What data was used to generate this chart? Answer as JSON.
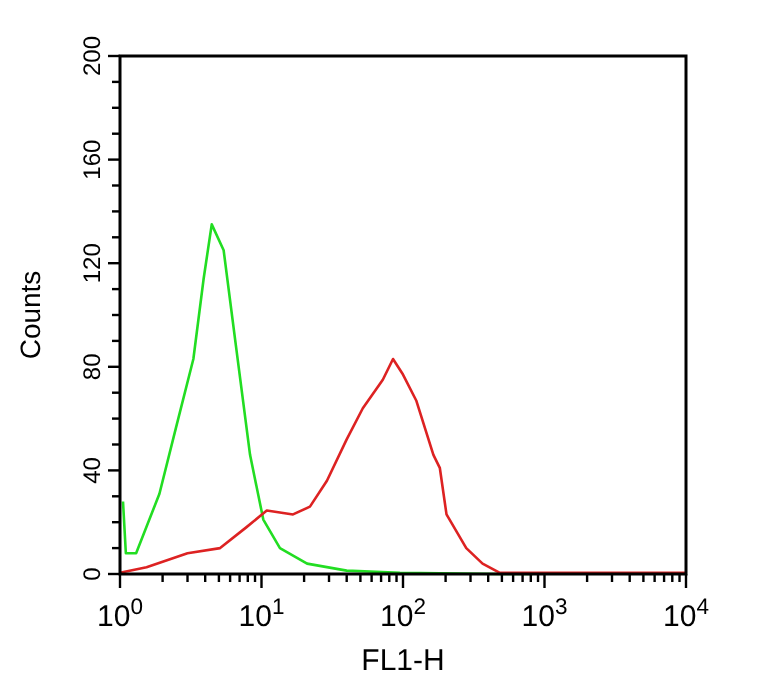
{
  "chart_data": {
    "type": "line",
    "xlabel": "FL1-H",
    "ylabel": "Counts",
    "log": "x",
    "grid": false,
    "marker": "none",
    "line_style": "solid",
    "xlim": [
      1,
      10000
    ],
    "ylim": [
      0,
      200
    ],
    "xticks": [
      {
        "value": 1,
        "label": "10$^{0}$"
      },
      {
        "value": 2,
        "label": null
      },
      {
        "value": 3,
        "label": null
      },
      {
        "value": 4,
        "label": null
      },
      {
        "value": 5,
        "label": null
      },
      {
        "value": 6,
        "label": null
      },
      {
        "value": 7,
        "label": null
      },
      {
        "value": 8,
        "label": null
      },
      {
        "value": 9,
        "label": null
      },
      {
        "value": 10,
        "label": "10$^{1}$"
      },
      {
        "value": 20,
        "label": null
      },
      {
        "value": 30,
        "label": null
      },
      {
        "value": 40,
        "label": null
      },
      {
        "value": 50,
        "label": null
      },
      {
        "value": 60,
        "label": null
      },
      {
        "value": 70,
        "label": null
      },
      {
        "value": 80,
        "label": null
      },
      {
        "value": 90,
        "label": null
      },
      {
        "value": 100,
        "label": "10$^{2}$"
      },
      {
        "value": 200,
        "label": null
      },
      {
        "value": 300,
        "label": null
      },
      {
        "value": 400,
        "label": null
      },
      {
        "value": 500,
        "label": null
      },
      {
        "value": 600,
        "label": null
      },
      {
        "value": 700,
        "label": null
      },
      {
        "value": 800,
        "label": null
      },
      {
        "value": 900,
        "label": null
      },
      {
        "value": 1000,
        "label": "10$^{3}$"
      },
      {
        "value": 2000,
        "label": null
      },
      {
        "value": 3000,
        "label": null
      },
      {
        "value": 4000,
        "label": null
      },
      {
        "value": 5000,
        "label": null
      },
      {
        "value": 6000,
        "label": null
      },
      {
        "value": 7000,
        "label": null
      },
      {
        "value": 8000,
        "label": null
      },
      {
        "value": 9000,
        "label": null
      },
      {
        "value": 10000,
        "label": "10$^{4}$"
      }
    ],
    "yticks": [
      0,
      {
        "value": 10,
        "label": null
      },
      {
        "value": 20,
        "label": null
      },
      {
        "value": 30,
        "label": null
      },
      40,
      {
        "value": 50,
        "label": null
      },
      {
        "value": 60,
        "label": null
      },
      {
        "value": 70,
        "label": null
      },
      80,
      {
        "value": 90,
        "label": null
      },
      {
        "value": 100,
        "label": null
      },
      {
        "value": 110,
        "label": null
      },
      120,
      {
        "value": 130,
        "label": null
      },
      {
        "value": 140,
        "label": null
      },
      {
        "value": 150,
        "label": null
      },
      160,
      {
        "value": 170,
        "label": null
      },
      {
        "value": 180,
        "label": null
      },
      {
        "value": 190,
        "label": null
      },
      200
    ],
    "series": [
      {
        "color": "#22dd22",
        "x": [
          1.05,
          1.1,
          1.3,
          1.9,
          2.5,
          3.3,
          3.9,
          4.45,
          5.4,
          6.6,
          8.3,
          10.3,
          13.5,
          21,
          40,
          95,
          480,
          830
        ],
        "values": [
          28,
          8,
          8,
          31,
          57,
          83,
          114,
          135,
          125,
          88,
          46,
          21,
          10,
          4,
          1.3,
          0.5,
          0,
          0
        ]
      },
      {
        "color": "#dd2222",
        "x": [
          1,
          1.54,
          3,
          5.1,
          7.8,
          10.9,
          16.7,
          22,
          29,
          40,
          52,
          72,
          85,
          100,
          124,
          164,
          182,
          203,
          280,
          365,
          480,
          10000
        ],
        "values": [
          0.5,
          2.6,
          8,
          10,
          18,
          24.5,
          23,
          26,
          36,
          52,
          64,
          75,
          83,
          77,
          67,
          46,
          41,
          23,
          10,
          4,
          0.5,
          0.5
        ]
      }
    ]
  }
}
